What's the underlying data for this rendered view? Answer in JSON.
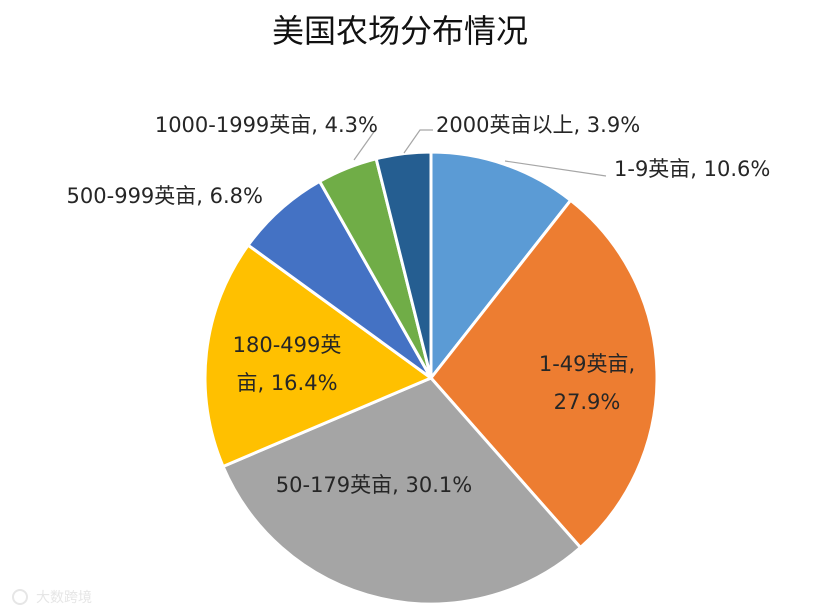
{
  "chart_data": {
    "type": "pie",
    "title": "美国农场分布情况",
    "start_angle_deg": 0,
    "direction": "clockwise",
    "slices": [
      {
        "label": "1-9英亩",
        "value": 10.6,
        "label_text": "1-9英亩, 10.6%",
        "color": "#5b9bd5"
      },
      {
        "label": "1-49英亩",
        "value": 27.9,
        "label_text": "1-49英亩,\n27.9%",
        "color": "#ed7d31"
      },
      {
        "label": "50-179英亩",
        "value": 30.1,
        "label_text": "50-179英亩, 30.1%",
        "color": "#a5a5a5"
      },
      {
        "label": "180-499英亩",
        "value": 16.4,
        "label_text": "180-499英\n亩, 16.4%",
        "color": "#ffc000"
      },
      {
        "label": "500-999英亩",
        "value": 6.8,
        "label_text": "500-999英亩, 6.8%",
        "color": "#4472c4"
      },
      {
        "label": "1000-1999英亩",
        "value": 4.3,
        "label_text": "1000-1999英亩, 4.3%",
        "color": "#70ad47"
      },
      {
        "label": "2000英亩以上",
        "value": 3.9,
        "label_text": "2000英亩以上, 3.9%",
        "color": "#255e91"
      }
    ],
    "slice_border_color": "#ffffff",
    "leader_line_color": "#a6a6a6"
  },
  "watermark": {
    "text": "大数跨境"
  }
}
